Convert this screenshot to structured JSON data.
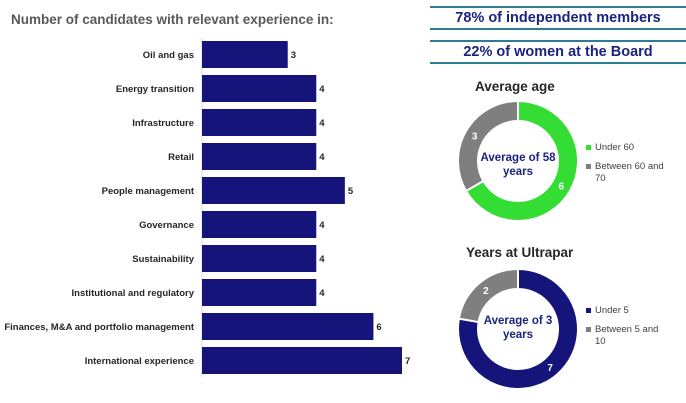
{
  "chart_data": [
    {
      "type": "bar",
      "orientation": "horizontal",
      "title": "Number of candidates with relevant experience in:",
      "categories": [
        "Oil and gas",
        "Energy transition",
        "Infrastructure",
        "Retail",
        "People management",
        "Governance",
        "Sustainability",
        "Institutional and regulatory",
        "Finances, M&A and portfolio management",
        "International experience"
      ],
      "values": [
        3,
        4,
        4,
        4,
        5,
        4,
        4,
        4,
        6,
        7
      ],
      "xlim": [
        0,
        7
      ],
      "color": "#14147a"
    },
    {
      "type": "pie",
      "variant": "donut",
      "title": "Average age",
      "center_label": "Average of 58 years",
      "labels": [
        "Under 60",
        "Between 60 and 70"
      ],
      "values": [
        6,
        3
      ],
      "colors": [
        "#33dd33",
        "#7f7f7f"
      ]
    },
    {
      "type": "pie",
      "variant": "donut",
      "title": "Years at Ultrapar",
      "center_label": "Average of 3 years",
      "labels": [
        "Under 5",
        "Between 5 and 10"
      ],
      "values": [
        7,
        2
      ],
      "colors": [
        "#14147a",
        "#7f7f7f"
      ]
    }
  ],
  "stats": {
    "independent": "78% of independent members",
    "women": "22% of women at the Board"
  }
}
